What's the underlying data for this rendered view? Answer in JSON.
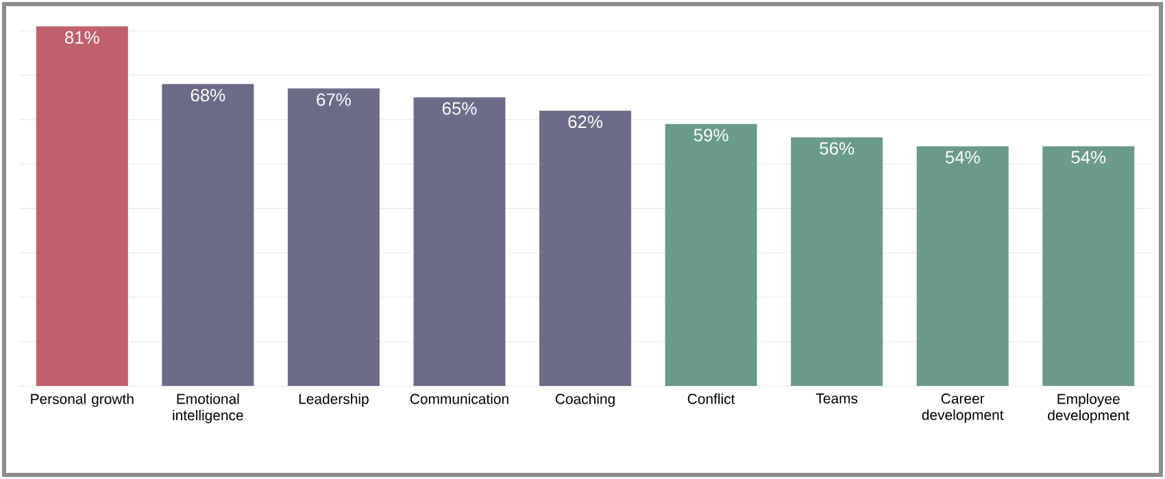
{
  "chart_data": {
    "type": "bar",
    "categories": [
      "Personal growth",
      "Emotional intelligence",
      "Leadership",
      "Communication",
      "Coaching",
      "Conflict",
      "Teams",
      "Career development",
      "Employee development"
    ],
    "values": [
      81,
      68,
      67,
      65,
      62,
      59,
      56,
      54,
      54
    ],
    "value_labels": [
      "81%",
      "68%",
      "67%",
      "65%",
      "62%",
      "59%",
      "56%",
      "54%",
      "54%"
    ],
    "colors": [
      "#c0606c",
      "#6c6c88",
      "#6c6c88",
      "#6c6c88",
      "#6c6c88",
      "#6a9a8c",
      "#6a9a8c",
      "#6a9a8c",
      "#6a9a8c"
    ],
    "ylim": [
      0,
      82
    ],
    "tick_labels": "x",
    "grid": "y"
  }
}
